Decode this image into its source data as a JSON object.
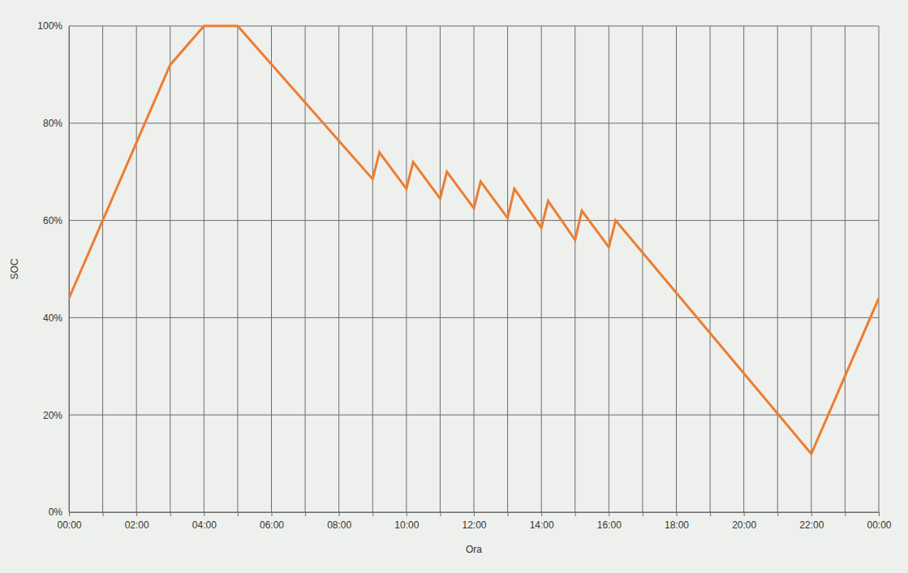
{
  "chart_data": {
    "type": "line",
    "x_label": "Ora",
    "y_label": "SOC",
    "x": [
      0,
      3,
      4,
      5,
      9,
      9.2,
      10,
      10.2,
      11,
      11.2,
      12,
      12.2,
      13,
      13.2,
      14,
      14.2,
      15,
      15.2,
      16,
      16.2,
      22,
      24
    ],
    "values": [
      44,
      92,
      100,
      100,
      68.5,
      74,
      66.5,
      72,
      64.5,
      70,
      62.5,
      68,
      60.5,
      66.5,
      58.5,
      64,
      56,
      62,
      54.5,
      60,
      12,
      44
    ],
    "color": "#ed7d31",
    "xlim": [
      0,
      24
    ],
    "xticks": [
      {
        "value": 0,
        "label": "00:00"
      },
      {
        "value": 1,
        "label": null
      },
      {
        "value": 2,
        "label": "02:00"
      },
      {
        "value": 3,
        "label": null
      },
      {
        "value": 4,
        "label": "04:00"
      },
      {
        "value": 5,
        "label": null
      },
      {
        "value": 6,
        "label": "06:00"
      },
      {
        "value": 7,
        "label": null
      },
      {
        "value": 8,
        "label": "08:00"
      },
      {
        "value": 9,
        "label": null
      },
      {
        "value": 10,
        "label": "10:00"
      },
      {
        "value": 11,
        "label": null
      },
      {
        "value": 12,
        "label": "12:00"
      },
      {
        "value": 13,
        "label": null
      },
      {
        "value": 14,
        "label": "14:00"
      },
      {
        "value": 15,
        "label": null
      },
      {
        "value": 16,
        "label": "16:00"
      },
      {
        "value": 17,
        "label": null
      },
      {
        "value": 18,
        "label": "18:00"
      },
      {
        "value": 19,
        "label": null
      },
      {
        "value": 20,
        "label": "20:00"
      },
      {
        "value": 21,
        "label": null
      },
      {
        "value": 22,
        "label": "22:00"
      },
      {
        "value": 23,
        "label": null
      },
      {
        "value": 24,
        "label": "00:00"
      }
    ],
    "ylim": [
      0,
      100
    ],
    "yticks": [
      {
        "value": 0,
        "label": "0%"
      },
      {
        "value": 20,
        "label": "20%"
      },
      {
        "value": 40,
        "label": "40%"
      },
      {
        "value": 60,
        "label": "60%"
      },
      {
        "value": 80,
        "label": "80%"
      },
      {
        "value": 100,
        "label": "100%"
      }
    ],
    "grid": true
  }
}
